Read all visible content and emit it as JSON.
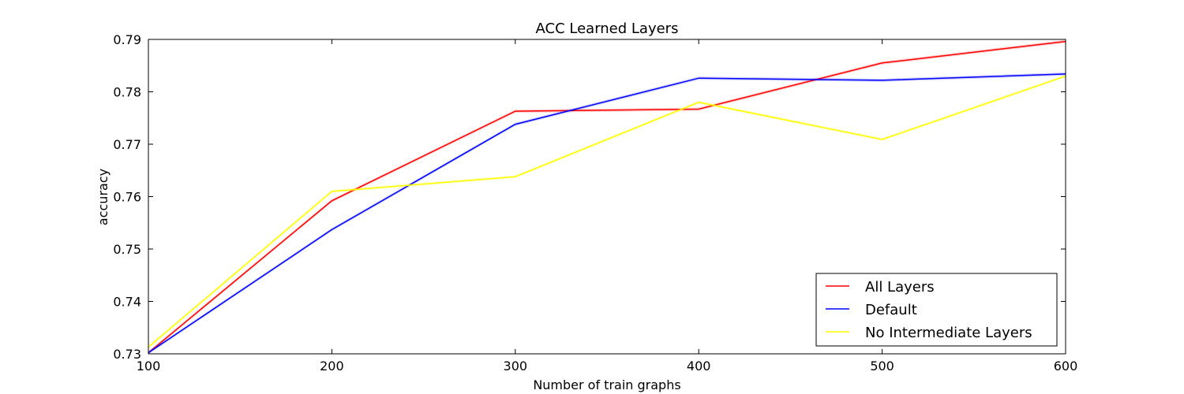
{
  "chart_data": {
    "type": "line",
    "title": "ACC Learned Layers",
    "xlabel": "Number of train graphs",
    "ylabel": "accuracy",
    "xlim": [
      100,
      600
    ],
    "ylim": [
      0.73,
      0.79
    ],
    "xticks": [
      100,
      200,
      300,
      400,
      500,
      600
    ],
    "xtick_labels": [
      "100",
      "200",
      "300",
      "400",
      "500",
      "600"
    ],
    "yticks": [
      0.73,
      0.74,
      0.75,
      0.76,
      0.77,
      0.78,
      0.79
    ],
    "ytick_labels": [
      "0.73",
      "0.74",
      "0.75",
      "0.76",
      "0.77",
      "0.78",
      "0.79"
    ],
    "grid": false,
    "legend_position": "lower-right",
    "x": [
      100,
      200,
      300,
      400,
      500,
      600
    ],
    "series": [
      {
        "name": "All Layers",
        "color": "#ff0000",
        "values": [
          0.7302,
          0.7592,
          0.7763,
          0.7767,
          0.7855,
          0.7896
        ]
      },
      {
        "name": "Default",
        "color": "#0000ff",
        "values": [
          0.7302,
          0.7537,
          0.7738,
          0.7826,
          0.7822,
          0.7834
        ]
      },
      {
        "name": "No Intermediate Layers",
        "color": "#ffff00",
        "values": [
          0.7313,
          0.761,
          0.7638,
          0.778,
          0.7709,
          0.783
        ]
      }
    ]
  }
}
